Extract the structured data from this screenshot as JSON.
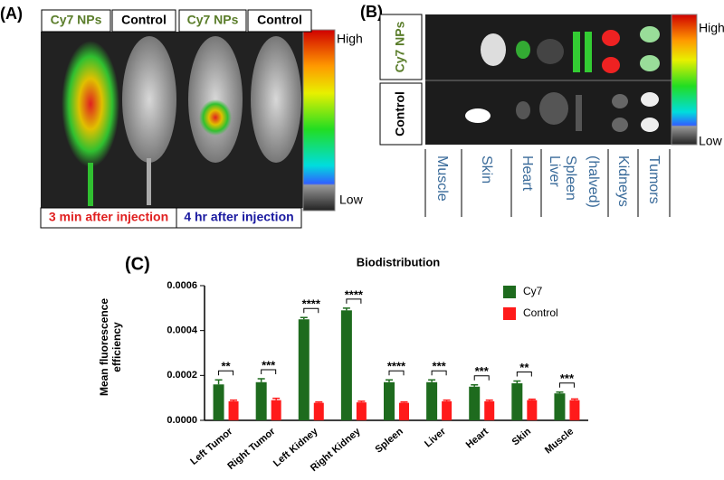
{
  "panel_a": {
    "label": "(A)",
    "headers": [
      "Cy7 NPs",
      "Control",
      "Cy7 NPs",
      "Control"
    ],
    "scale_high": "High",
    "scale_low": "Low",
    "captions": [
      "3 min after injection",
      "4 hr after injection"
    ]
  },
  "panel_b": {
    "label": "(B)",
    "rows": [
      "Cy7 NPs",
      "Control"
    ],
    "organs": [
      "Muscle",
      "Skin",
      "Heart",
      "Liver",
      "Spleen",
      "(halved)",
      "Kidneys",
      "Tumors"
    ],
    "scale_high": "High",
    "scale_low": "Low"
  },
  "chart_data": {
    "type": "bar",
    "panel_label": "(C)",
    "title": "Biodistribution",
    "ylabel": "Mean fluorescence efficiency",
    "categories": [
      "Left Tumor",
      "Right Tumor",
      "Left Kidney",
      "Right Kidney",
      "Spleen",
      "Liver",
      "Heart",
      "Skin",
      "Muscle"
    ],
    "series": [
      {
        "name": "Cy7",
        "color": "#1e6b1e",
        "values": [
          0.00016,
          0.00017,
          0.00045,
          0.00049,
          0.00017,
          0.00017,
          0.00015,
          0.000165,
          0.00012
        ],
        "errors": [
          2e-05,
          1.5e-05,
          8e-06,
          1e-05,
          1e-05,
          1e-05,
          8e-06,
          1e-05,
          6e-06
        ]
      },
      {
        "name": "Control",
        "color": "#ff1a1a",
        "values": [
          8.5e-05,
          9e-05,
          7.8e-05,
          8e-05,
          7.8e-05,
          8.5e-05,
          8.5e-05,
          9e-05,
          9e-05
        ],
        "errors": [
          5e-06,
          8e-06,
          4e-06,
          5e-06,
          4e-06,
          5e-06,
          5e-06,
          4e-06,
          5e-06
        ]
      }
    ],
    "significance": [
      "**",
      "***",
      "****",
      "****",
      "****",
      "***",
      "***",
      "**",
      "***"
    ],
    "ylim": [
      0,
      0.0006
    ],
    "yticks": [
      {
        "value": 0,
        "label": "0.0000"
      },
      {
        "value": 0.0002,
        "label": "0.0002"
      },
      {
        "value": 0.0004,
        "label": "0.0004"
      },
      {
        "value": 0.0006,
        "label": "0.0006"
      }
    ],
    "legend": "upper right"
  }
}
